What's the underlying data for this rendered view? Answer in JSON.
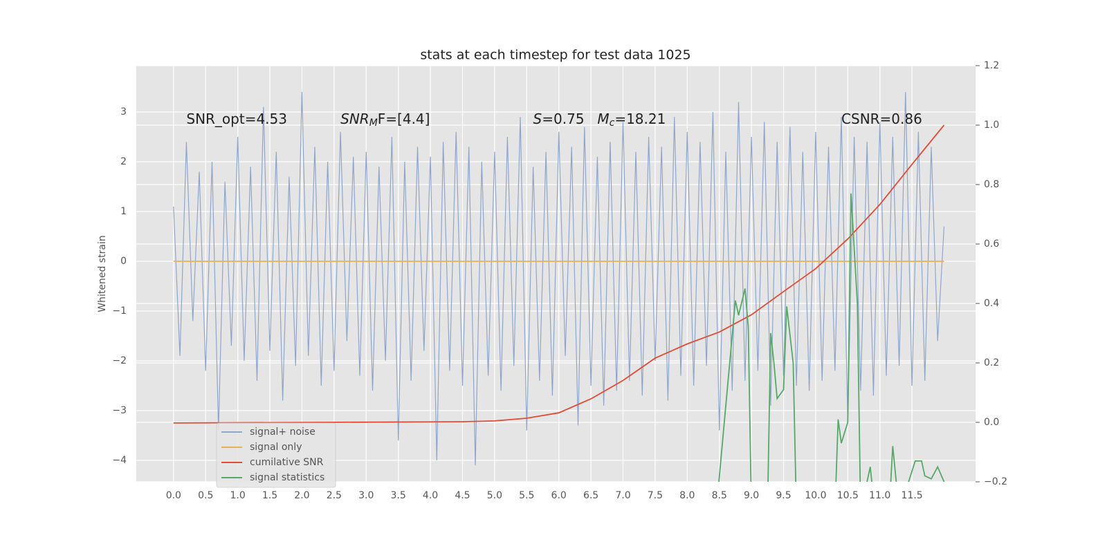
{
  "chart_data": {
    "type": "line",
    "title": "stats at each timestep for test data 1025",
    "ylabel": "Whitened strain",
    "xlim": [
      -0.58,
      12.49
    ],
    "ylim": [
      -4.43,
      3.93
    ],
    "y2lim": [
      -0.2,
      1.2
    ],
    "xticks": [
      {
        "value": 0,
        "label": "0.0"
      },
      {
        "value": 0.5,
        "label": "0.5"
      },
      {
        "value": 1,
        "label": "1.0"
      },
      {
        "value": 1.5,
        "label": "1.5"
      },
      {
        "value": 2,
        "label": "2.0"
      },
      {
        "value": 2.5,
        "label": "2.5"
      },
      {
        "value": 3,
        "label": "3.0"
      },
      {
        "value": 3.5,
        "label": "3.5"
      },
      {
        "value": 4,
        "label": "4.0"
      },
      {
        "value": 4.5,
        "label": "4.5"
      },
      {
        "value": 5,
        "label": "5.0"
      },
      {
        "value": 5.5,
        "label": "5.5"
      },
      {
        "value": 6,
        "label": "6.0"
      },
      {
        "value": 6.5,
        "label": "6.5"
      },
      {
        "value": 7,
        "label": "7.0"
      },
      {
        "value": 7.5,
        "label": "7.5"
      },
      {
        "value": 8,
        "label": "8.0"
      },
      {
        "value": 8.5,
        "label": "8.5"
      },
      {
        "value": 9,
        "label": "9.0"
      },
      {
        "value": 9.5,
        "label": "9.5"
      },
      {
        "value": 10,
        "label": "10.0"
      },
      {
        "value": 10.5,
        "label": "10.5"
      },
      {
        "value": 11,
        "label": "11.0"
      },
      {
        "value": 11.5,
        "label": "11.5"
      }
    ],
    "yticks": [
      {
        "value": -4,
        "label": "−4"
      },
      {
        "value": -3,
        "label": "−3"
      },
      {
        "value": -2,
        "label": "−2"
      },
      {
        "value": -1,
        "label": "−1"
      },
      0,
      1,
      2,
      3
    ],
    "y2ticks": [
      {
        "value": -0.2,
        "label": "−0.2"
      },
      {
        "value": 0,
        "label": "0.0"
      },
      0.2,
      0.4,
      0.6,
      0.8,
      {
        "value": 1,
        "label": "1.0"
      },
      1.2
    ],
    "grid": true,
    "legend": "lower left",
    "annotations": [
      {
        "parts": [
          "SNR_opt=4.53"
        ],
        "x": 0.2,
        "y": 2.85
      },
      {
        "parts": [
          "SNR",
          "M",
          "F=[4.4]"
        ],
        "x": 2.6,
        "y": 2.85
      },
      {
        "parts": [
          "S",
          "=0.75"
        ],
        "x": 5.6,
        "y": 2.85
      },
      {
        "parts": [
          "M",
          "c",
          "=18.21"
        ],
        "x": 6.6,
        "y": 2.85
      },
      {
        "parts": [
          "CSNR=0.86"
        ],
        "x": 10.4,
        "y": 2.85
      }
    ],
    "series": [
      {
        "name": "signal+ noise",
        "color": "#8fa6cb",
        "x": [
          0,
          0.1,
          0.2,
          0.3,
          0.4,
          0.5,
          0.6,
          0.7,
          0.8,
          0.9,
          1,
          1.1,
          1.2,
          1.3,
          1.4,
          1.5,
          1.6,
          1.7,
          1.8,
          1.9,
          2,
          2.1,
          2.2,
          2.3,
          2.4,
          2.5,
          2.6,
          2.7,
          2.8,
          2.9,
          3,
          3.1,
          3.2,
          3.3,
          3.4,
          3.5,
          3.6,
          3.7,
          3.8,
          3.9,
          4,
          4.1,
          4.2,
          4.3,
          4.4,
          4.5,
          4.6,
          4.7,
          4.8,
          4.9,
          5,
          5.1,
          5.2,
          5.3,
          5.4,
          5.5,
          5.6,
          5.7,
          5.8,
          5.9,
          6,
          6.1,
          6.2,
          6.3,
          6.4,
          6.5,
          6.6,
          6.7,
          6.8,
          6.9,
          7,
          7.1,
          7.2,
          7.3,
          7.4,
          7.5,
          7.6,
          7.7,
          7.8,
          7.9,
          8,
          8.1,
          8.2,
          8.3,
          8.4,
          8.5,
          8.6,
          8.7,
          8.8,
          8.9,
          9,
          9.1,
          9.2,
          9.3,
          9.4,
          9.5,
          9.6,
          9.7,
          9.8,
          9.9,
          10,
          10.1,
          10.2,
          10.3,
          10.4,
          10.5,
          10.6,
          10.7,
          10.8,
          10.9,
          11,
          11.1,
          11.2,
          11.3,
          11.4,
          11.5,
          11.6,
          11.7,
          11.8,
          11.9,
          12
        ],
        "values": [
          1.1,
          -1.9,
          2.4,
          -1.2,
          1.8,
          -2.2,
          2.0,
          -3.4,
          1.6,
          -1.7,
          2.5,
          -2.0,
          1.9,
          -2.4,
          3.1,
          -1.8,
          2.2,
          -2.8,
          1.7,
          -2.1,
          3.4,
          -1.9,
          2.3,
          -2.5,
          2.0,
          -2.2,
          2.6,
          -1.6,
          2.1,
          -2.3,
          2.2,
          -2.6,
          1.9,
          -2.0,
          2.5,
          -3.6,
          2.0,
          -2.4,
          2.3,
          -1.8,
          2.1,
          -4.0,
          2.4,
          -2.2,
          2.6,
          -2.5,
          2.3,
          -4.1,
          2.0,
          -2.3,
          2.2,
          -2.6,
          2.5,
          -2.1,
          2.9,
          -3.4,
          1.9,
          -2.4,
          2.2,
          -2.7,
          2.6,
          -1.9,
          2.3,
          -3.3,
          2.7,
          -2.5,
          2.1,
          -2.9,
          2.4,
          -2.6,
          2.8,
          -2.4,
          2.2,
          -2.7,
          2.5,
          -2.0,
          2.3,
          -2.8,
          2.9,
          -2.3,
          2.6,
          -2.5,
          2.4,
          -2.1,
          3.0,
          -3.4,
          2.2,
          -2.6,
          3.2,
          -2.4,
          2.5,
          -2.2,
          2.8,
          -2.9,
          2.4,
          -2.3,
          2.7,
          -2.5,
          2.2,
          -2.6,
          2.6,
          -2.4,
          2.3,
          -2.2,
          2.9,
          -3.2,
          2.5,
          -2.6,
          2.4,
          -2.7,
          2.8,
          -2.3,
          2.5,
          -2.1,
          3.4,
          -2.5,
          2.6,
          -2.4,
          2.3,
          -1.6,
          0.7
        ]
      },
      {
        "name": "signal only",
        "color": "#e8b24f",
        "x": [
          0,
          12
        ],
        "values": [
          0,
          0
        ]
      },
      {
        "name": "cumilative SNR",
        "color": "#e24a33",
        "axis": "y2",
        "x": [
          0,
          4.5,
          5,
          5.5,
          6,
          6.5,
          7,
          7.5,
          8,
          8.5,
          9,
          9.5,
          10,
          10.5,
          11,
          11.5,
          12
        ],
        "values": [
          -0.002,
          0.002,
          0.005,
          0.014,
          0.032,
          0.079,
          0.141,
          0.216,
          0.264,
          0.304,
          0.362,
          0.44,
          0.517,
          0.617,
          0.733,
          0.868,
          1.0
        ]
      },
      {
        "name": "signal statistics",
        "color": "#55a868",
        "axis": "y2",
        "x": [
          8.45,
          8.75,
          8.8,
          8.9,
          8.95,
          9.0,
          9.25,
          9.3,
          9.35,
          9.4,
          9.5,
          9.55,
          9.65,
          9.7,
          10.3,
          10.35,
          10.4,
          10.5,
          10.55,
          10.65,
          10.7,
          10.85,
          10.9,
          11.15,
          11.2,
          11.3,
          11.55,
          11.65,
          11.7,
          11.8,
          11.9,
          12.0
        ],
        "values": [
          -0.3,
          0.41,
          0.36,
          0.45,
          0.32,
          -0.3,
          -0.3,
          0.3,
          0.2,
          0.08,
          0.11,
          0.39,
          0.2,
          -0.3,
          -0.3,
          0.01,
          -0.07,
          0.0,
          0.77,
          0.4,
          -0.3,
          -0.15,
          -0.25,
          -0.28,
          -0.08,
          -0.3,
          -0.13,
          -0.13,
          -0.18,
          -0.19,
          -0.15,
          -0.2
        ]
      }
    ]
  }
}
